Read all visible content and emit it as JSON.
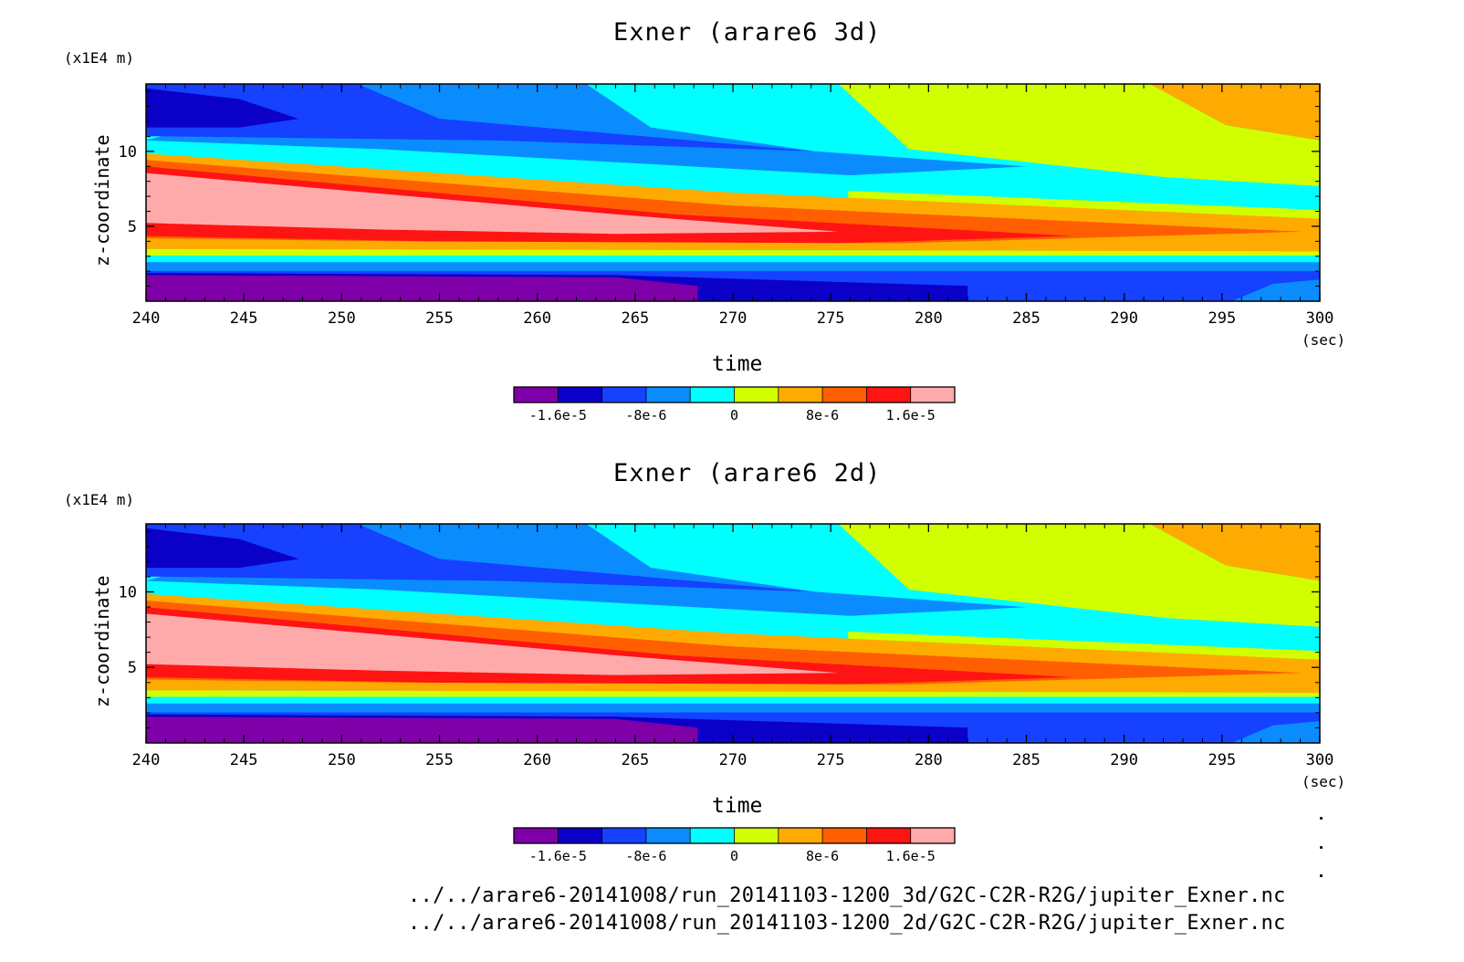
{
  "chart_data": [
    {
      "type": "heatmap",
      "title": "Exner (arare6 3d)",
      "xlabel": "time",
      "x_unit": "(sec)",
      "ylabel": "z-coordinate",
      "y_unit": "(x1E4 m)",
      "xlim": [
        240,
        300
      ],
      "ylim": [
        0,
        14.5
      ],
      "x_ticks": [
        240,
        245,
        250,
        255,
        260,
        265,
        270,
        275,
        280,
        285,
        290,
        295,
        300
      ],
      "y_ticks": [
        5,
        10
      ],
      "color_levels": [
        -2e-05,
        -1.6e-05,
        -1.2e-05,
        -8e-06,
        -4e-06,
        0,
        4e-06,
        8e-06,
        1.2e-05,
        1.6e-05,
        2e-05
      ],
      "colorbar_tick_labels": [
        "-1.6e-5",
        "-8e-6",
        "0",
        "8e-6",
        "1.6e-5"
      ],
      "colorbar_tick_values": [
        -1.6e-05,
        -8e-06,
        0,
        8e-06,
        1.6e-05
      ]
    },
    {
      "type": "heatmap",
      "title": "Exner (arare6 2d)",
      "xlabel": "time",
      "x_unit": "(sec)",
      "ylabel": "z-coordinate",
      "y_unit": "(x1E4 m)",
      "xlim": [
        240,
        300
      ],
      "ylim": [
        0,
        14.5
      ],
      "x_ticks": [
        240,
        245,
        250,
        255,
        260,
        265,
        270,
        275,
        280,
        285,
        290,
        295,
        300
      ],
      "y_ticks": [
        5,
        10
      ],
      "color_levels": [
        -2e-05,
        -1.6e-05,
        -1.2e-05,
        -8e-06,
        -4e-06,
        0,
        4e-06,
        8e-06,
        1.2e-05,
        1.6e-05,
        2e-05
      ],
      "colorbar_tick_labels": [
        "-1.6e-5",
        "-8e-6",
        "0",
        "8e-6",
        "1.6e-5"
      ],
      "colorbar_tick_values": [
        -1.6e-05,
        -8e-06,
        0,
        8e-06,
        1.6e-05
      ]
    }
  ],
  "palette": [
    "#7f00a8",
    "#0a00c8",
    "#1541ff",
    "#0a8cff",
    "#00ffff",
    "#d2ff00",
    "#ffaa00",
    "#ff5f00",
    "#ff1414",
    "#ffaaaa"
  ],
  "files": [
    "../../arare6-20141008/run_20141103-1200_3d/G2C-C2R-R2G/jupiter_Exner.nc",
    "../../arare6-20141008/run_20141103-1200_2d/G2C-C2R-R2G/jupiter_Exner.nc"
  ]
}
